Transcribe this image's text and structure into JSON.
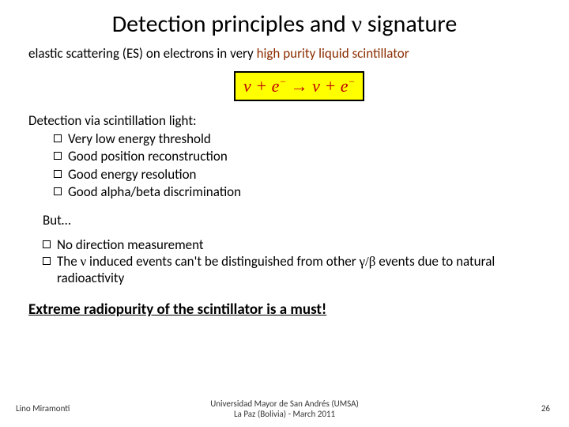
{
  "title_pre": "Detection principles and ",
  "title_sym": "ν",
  "title_post": " signature",
  "subtitle_pre": "elastic scattering (ES) on electrons in very ",
  "subtitle_hl": "high purity liquid scintillator",
  "equation": "ν + e⁻ → ν + e⁻",
  "section_label": "Detection via scintillation light:",
  "bullets": {
    "b0": "Very low energy threshold",
    "b1": "Good position reconstruction",
    "b2": "Good energy resolution",
    "b3": "Good alpha/beta discrimination"
  },
  "but": "But…",
  "bullets2": {
    "c0": "No direction measurement",
    "c1_pre": "The ",
    "c1_nu": "ν",
    "c1_mid": " induced events can't be distinguished from other ",
    "c1_gb": "γ/β",
    "c1_post": " events due to natural radioactivity"
  },
  "conclusion": "Extreme radiopurity of the scintillator is a must!",
  "footer": {
    "author": "Lino Miramonti",
    "inst_line1": "Universidad Mayor de San Andrés (UMSA)",
    "inst_line2": "La Paz (Bolivia) - March 2011",
    "page": "26"
  }
}
